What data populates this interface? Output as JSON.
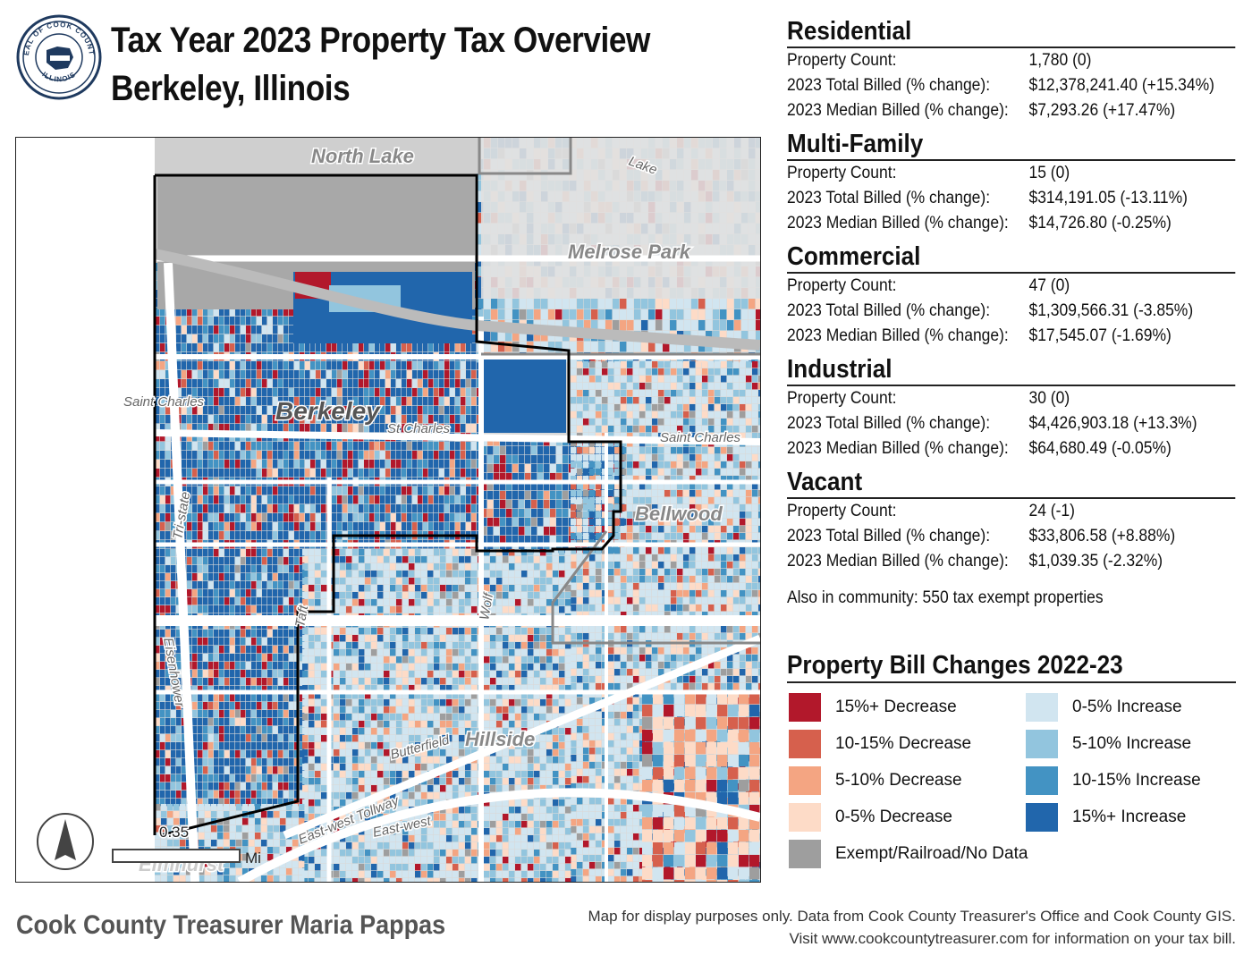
{
  "header": {
    "title_line1": "Tax Year 2023 Property Tax Overview",
    "title_line2": "Berkeley, Illinois",
    "seal_text_top": "SEAL OF COOK COUNTY",
    "seal_text_bottom": "ILLINOIS"
  },
  "stats": [
    {
      "category": "Residential",
      "count": "1,780 (0)",
      "total": "$12,378,241.40 (+15.34%)",
      "median": "$7,293.26 (+17.47%)"
    },
    {
      "category": "Multi-Family",
      "count": "15 (0)",
      "total": "$314,191.05 (-13.11%)",
      "median": "$14,726.80 (-0.25%)"
    },
    {
      "category": "Commercial",
      "count": "47 (0)",
      "total": "$1,309,566.31 (-3.85%)",
      "median": "$17,545.07 (-1.69%)"
    },
    {
      "category": "Industrial",
      "count": "30 (0)",
      "total": "$4,426,903.18 (+13.3%)",
      "median": "$64,680.49 (-0.05%)"
    },
    {
      "category": "Vacant",
      "count": "24 (-1)",
      "total": "$33,806.58 (+8.88%)",
      "median": "$1,039.35 (-2.32%)"
    }
  ],
  "labels": {
    "count": "Property Count:",
    "total": "2023 Total Billed (% change):",
    "median": "2023 Median Billed (% change):"
  },
  "exempt_note": "Also in community: 550 tax exempt properties",
  "legend": {
    "title": "Property Bill Changes 2022-23",
    "items": [
      {
        "label": "15%+ Decrease",
        "color": "#b2182b"
      },
      {
        "label": "10-15% Decrease",
        "color": "#d6604d"
      },
      {
        "label": "5-10% Decrease",
        "color": "#f4a582"
      },
      {
        "label": "0-5% Decrease",
        "color": "#fddbc7"
      },
      {
        "label": "Exempt/Railroad/No Data",
        "color": "#9e9e9e"
      },
      {
        "label": "0-5% Increase",
        "color": "#d1e5f0"
      },
      {
        "label": "5-10% Increase",
        "color": "#92c5de"
      },
      {
        "label": "10-15% Increase",
        "color": "#4393c3"
      },
      {
        "label": "15%+ Increase",
        "color": "#2166ac"
      }
    ]
  },
  "map": {
    "places": {
      "north_lake": "North Lake",
      "melrose_park": "Melrose Park",
      "berkeley": "Berkeley",
      "bellwood": "Bellwood",
      "hillside": "Hillside",
      "elmhurst": "Elmhurst"
    },
    "streets": {
      "lake": "Lake",
      "saint_charles_w": "Saint Charles",
      "st_charles": "St Charles",
      "saint_charles_e": "Saint Charles",
      "tri_state": "Tri-state",
      "eisenhower": "Eisenhower",
      "taft": "Taft",
      "wolf": "Wolf",
      "butterfield": "Butterfield",
      "east_west_tollway": "East-west Tollway",
      "east_west": "East-west"
    },
    "scale_value": "0.35",
    "scale_unit": "Mi"
  },
  "footer": {
    "left": "Cook County Treasurer Maria Pappas",
    "right_line1": "Map for display purposes only. Data from Cook County Treasurer's Office and Cook County GIS.",
    "right_line2": "Visit www.cookcountytreasurer.com for information on your tax bill."
  }
}
